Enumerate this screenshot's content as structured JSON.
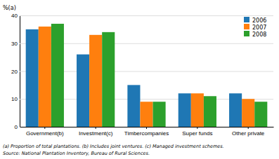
{
  "chart_data": {
    "type": "bar",
    "ylabel": "%(a)",
    "categories": [
      "Government(b)",
      "Investment(c)",
      "Timbercompanies",
      "Super funds",
      "Other private"
    ],
    "series": [
      {
        "name": "2006",
        "values": [
          35,
          26,
          15,
          12,
          12
        ]
      },
      {
        "name": "2007",
        "values": [
          36,
          33,
          9,
          12,
          10
        ]
      },
      {
        "name": "2008",
        "values": [
          37,
          34,
          9,
          11,
          9
        ]
      }
    ],
    "ylim": [
      0,
      40
    ],
    "yticks": [
      0,
      10,
      20,
      30,
      40
    ],
    "grid": true,
    "legend": "upper-right",
    "annotations": [
      "(a) Proportion of total plantations.  (b) Includes joint ventures.  (c) Managed investment schemes.",
      "Source:  National Plantation Inventory,  Bureau of Rural Sciences."
    ]
  }
}
